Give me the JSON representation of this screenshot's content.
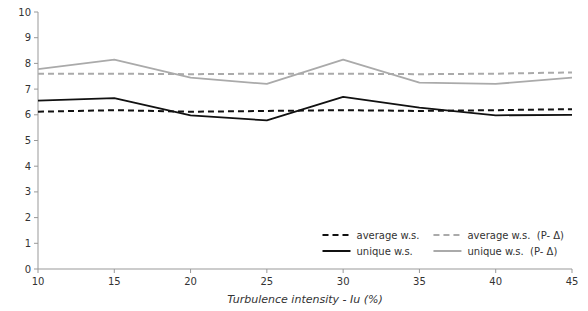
{
  "chart_data": {
    "type": "line",
    "x": [
      10,
      15,
      20,
      25,
      30,
      35,
      40,
      45
    ],
    "xlabel": "Turbulence intensity - Iu (%)",
    "xlim": [
      10,
      45
    ],
    "xticks": [
      10,
      15,
      20,
      25,
      30,
      35,
      40,
      45
    ],
    "ylim": [
      0,
      10
    ],
    "yticks": [
      0,
      1,
      2,
      3,
      4,
      5,
      6,
      7,
      8,
      9,
      10
    ],
    "grid": false,
    "legend": "lower right",
    "series": [
      {
        "name": "average w.s.",
        "color": "#111111",
        "line_style": "dashed",
        "values": [
          6.12,
          6.18,
          6.12,
          6.15,
          6.18,
          6.15,
          6.18,
          6.22
        ]
      },
      {
        "name": "average w.s.  (P- Δ)",
        "color": "#aaaaaa",
        "line_style": "dashed",
        "values": [
          7.6,
          7.6,
          7.58,
          7.6,
          7.6,
          7.58,
          7.6,
          7.65
        ]
      },
      {
        "name": "unique w.s.",
        "color": "#111111",
        "line_style": "solid",
        "values": [
          6.55,
          6.65,
          5.98,
          5.78,
          6.7,
          6.28,
          5.98,
          6.0
        ]
      },
      {
        "name": "unique w.s.  (P- Δ)",
        "color": "#aaaaaa",
        "line_style": "solid",
        "values": [
          7.78,
          8.15,
          7.45,
          7.2,
          8.15,
          7.25,
          7.2,
          7.45
        ]
      }
    ]
  }
}
